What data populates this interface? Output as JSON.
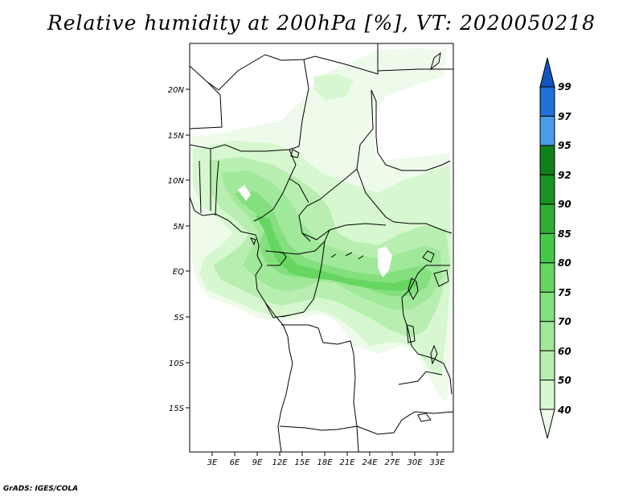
{
  "title": "Relative humidity at 200hPa [%], VT: 2020050218",
  "credit": "GrADS: IGES/COLA",
  "map": {
    "x_ticks": [
      "3E",
      "6E",
      "9E",
      "12E",
      "15E",
      "18E",
      "21E",
      "24E",
      "27E",
      "30E",
      "33E"
    ],
    "y_ticks": [
      "20N",
      "15N",
      "10N",
      "5N",
      "EQ",
      "5S",
      "10S",
      "15S"
    ]
  },
  "colorbar": {
    "levels": [
      "40",
      "50",
      "60",
      "70",
      "75",
      "80",
      "85",
      "90",
      "92",
      "95",
      "97",
      "99"
    ],
    "colors": [
      "#eefbeb",
      "#d6f7cf",
      "#b8efb0",
      "#a0e89a",
      "#84e07f",
      "#66d660",
      "#45c847",
      "#2fae34",
      "#1a9324",
      "#118019",
      "#4a9ce8",
      "#2070d8",
      "#1454c0"
    ]
  }
}
